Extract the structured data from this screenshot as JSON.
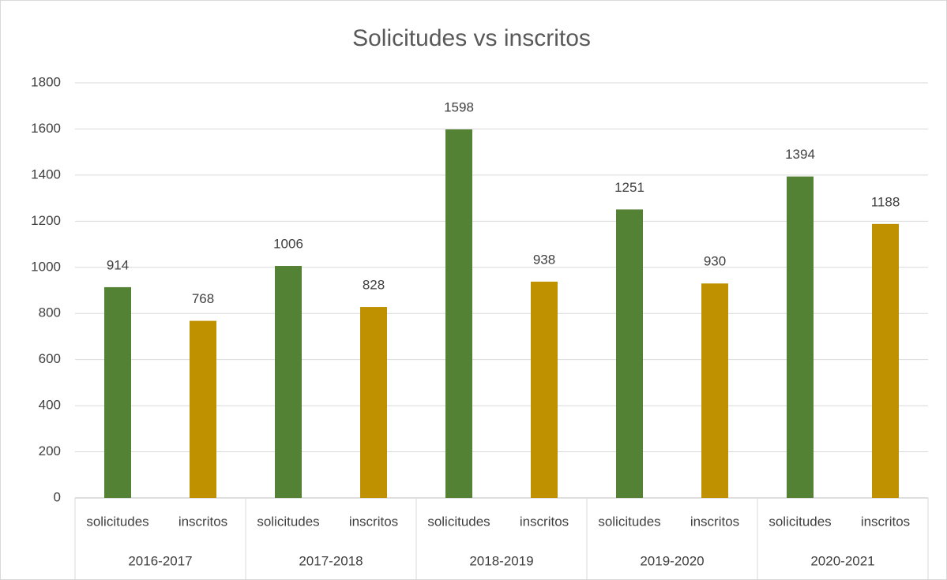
{
  "chart_data": {
    "type": "bar",
    "title": "Solicitudes vs inscritos",
    "categories": [
      "2016-2017",
      "2017-2018",
      "2018-2019",
      "2019-2020",
      "2020-2021"
    ],
    "series": [
      {
        "name": "solicitudes",
        "color": "#548235",
        "values": [
          914,
          1006,
          1598,
          1251,
          1394
        ]
      },
      {
        "name": "inscritos",
        "color": "#bf9000",
        "values": [
          768,
          828,
          938,
          930,
          1188
        ]
      }
    ],
    "ylim": [
      0,
      1800
    ],
    "yticks": [
      0,
      200,
      400,
      600,
      800,
      1000,
      1200,
      1400,
      1600,
      1800
    ],
    "grid": true
  }
}
